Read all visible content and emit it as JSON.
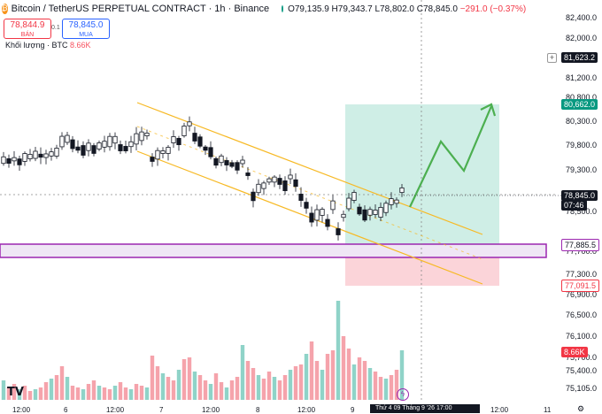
{
  "header": {
    "coin_glyph": "₿",
    "symbol": "Bitcoin / TetherUS PERPETUAL CONTRACT · 1h · Binance",
    "ohlc": "O79,135.9 H79,343.7 L78,802.0 C78,845.0",
    "change": "−291.0 (−0.37%)"
  },
  "trade": {
    "sell_price": "78,844.9",
    "sell_label": "BÁN",
    "spread": "0.1",
    "buy_price": "78,845.0",
    "buy_label": "MUA"
  },
  "volume_legend": {
    "label": "Khối lượng · BTC",
    "value": "8.66K"
  },
  "price_axis": {
    "ticks": [
      "82,400.0",
      "82,000.0",
      "81,200.0",
      "80,800.0",
      "80,300.0",
      "79,800.0",
      "79,300.0",
      "78,500.0",
      "77,700.0",
      "77,300.0",
      "76,900.0",
      "76,500.0",
      "76,100.0",
      "75,700.0",
      "75,400.0",
      "75,105.0"
    ],
    "tags": {
      "alert": "81,623.2",
      "target": "80,662.0",
      "current": "78,845.0",
      "countdown": "07:46",
      "entry": "77,885.5",
      "stop": "77,091.5",
      "volume": "8.66K"
    }
  },
  "time_axis": {
    "labels": [
      "12:00",
      "6",
      "12:00",
      "7",
      "12:00",
      "8",
      "12:00",
      "9",
      "12:00",
      "11"
    ],
    "crosshair": "Thứ 4 09 Tháng 9 '26   17:00"
  },
  "icons": {
    "logo": "TV",
    "alert": "ϟ",
    "plus": "+",
    "gear": "⚙"
  },
  "colors": {
    "up": "#089981",
    "down": "#f23645",
    "channel": "#f7b924",
    "zone": "#9c27b0",
    "tp_zone": "#cfeee6",
    "sl_zone": "#fbd4d9",
    "projection": "#4caf50"
  }
}
